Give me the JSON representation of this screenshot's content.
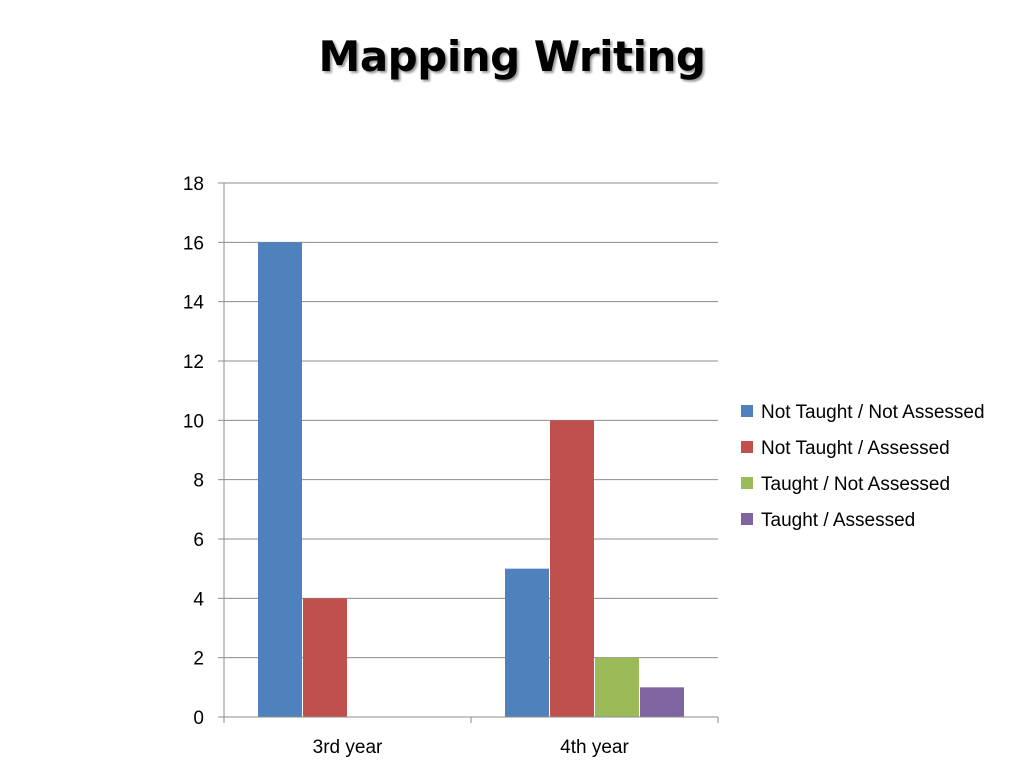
{
  "slide": {
    "title": "Mapping Writing"
  },
  "chart_data": {
    "type": "bar",
    "title": "",
    "xlabel": "",
    "ylabel": "",
    "categories": [
      "3rd year",
      "4th year"
    ],
    "ylim": [
      0,
      18
    ],
    "yticks": [
      0,
      2,
      4,
      6,
      8,
      10,
      12,
      14,
      16,
      18
    ],
    "grid": true,
    "legend_position": "right",
    "series": [
      {
        "name": "Not Taught / Not Assessed",
        "values": [
          16,
          5
        ],
        "color": "#4F81BD"
      },
      {
        "name": "Not Taught / Assessed",
        "values": [
          4,
          10
        ],
        "color": "#C0504D"
      },
      {
        "name": "Taught / Not Assessed",
        "values": [
          0,
          2
        ],
        "color": "#9BBB59"
      },
      {
        "name": "Taught / Assessed",
        "values": [
          0,
          1
        ],
        "color": "#8064A2"
      }
    ]
  }
}
